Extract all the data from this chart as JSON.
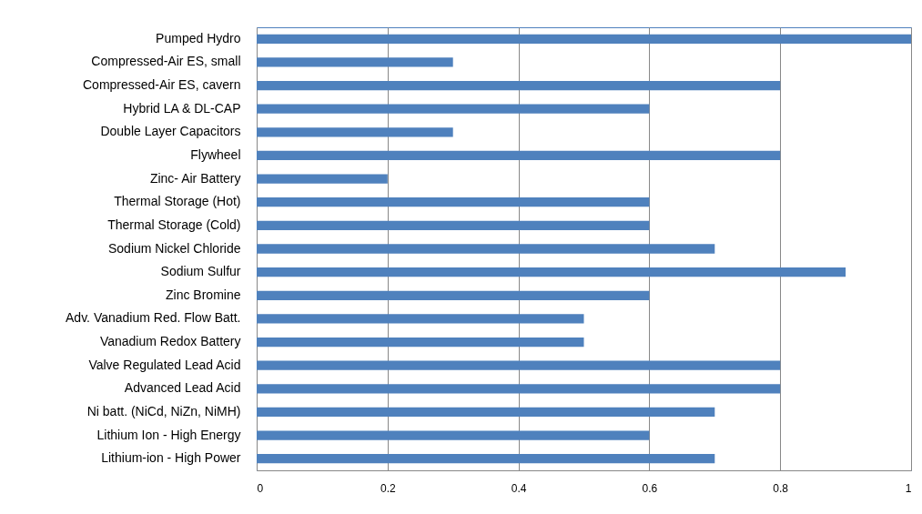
{
  "chart_data": {
    "type": "bar",
    "orientation": "horizontal",
    "categories": [
      "Pumped Hydro",
      "Compressed-Air ES, small",
      "Compressed-Air ES, cavern",
      "Hybrid LA & DL-CAP",
      "Double Layer Capacitors",
      "Flywheel",
      "Zinc- Air Battery",
      "Thermal Storage (Hot)",
      "Thermal Storage (Cold)",
      "Sodium Nickel Chloride",
      "Sodium Sulfur",
      "Zinc Bromine",
      "Adv. Vanadium Red. Flow Batt.",
      "Vanadium Redox Battery",
      "Valve Regulated Lead Acid",
      "Advanced Lead Acid",
      "Ni batt. (NiCd, NiZn, NiMH)",
      "Lithium Ion - High Energy",
      "Lithium-ion - High Power"
    ],
    "values": [
      1,
      0.3,
      0.8,
      0.6,
      0.3,
      0.8,
      0.2,
      0.6,
      0.6,
      0.7,
      0.9,
      0.6,
      0.5,
      0.5,
      0.8,
      0.8,
      0.7,
      0.6,
      0.7
    ],
    "color": "#4f81bd",
    "xlim": [
      0,
      1
    ],
    "xticks": [
      0,
      0.2,
      0.4,
      0.6,
      0.8,
      1
    ],
    "grid": "x"
  }
}
